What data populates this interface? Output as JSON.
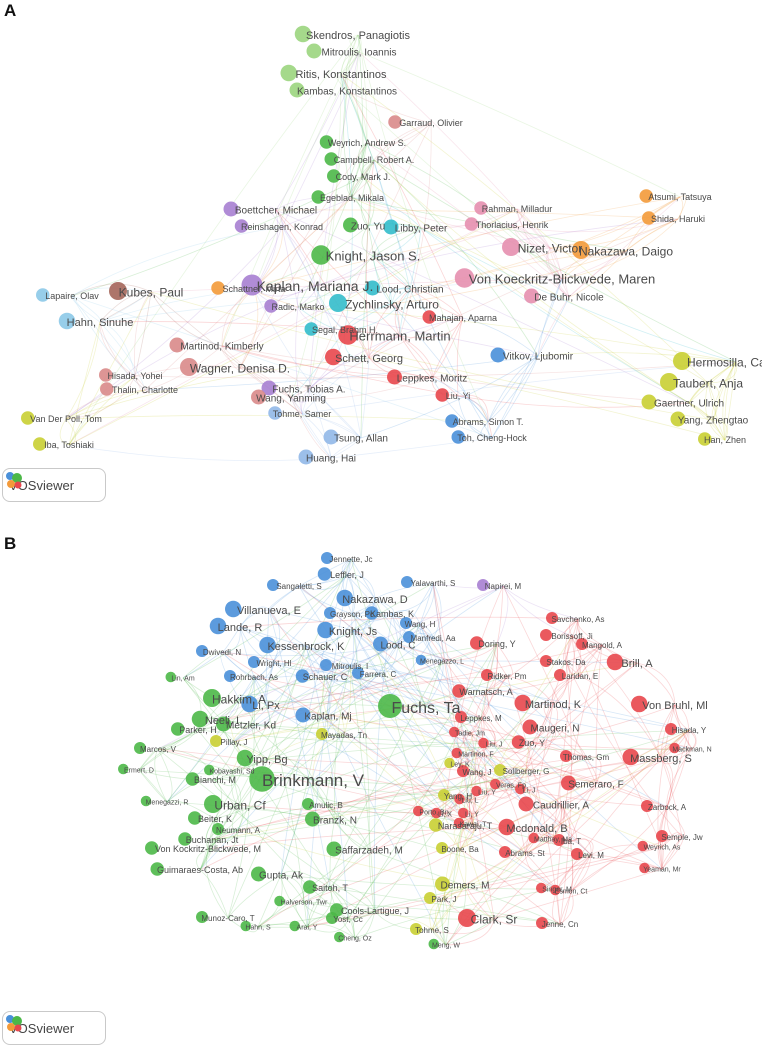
{
  "panels": [
    {
      "letter": "A",
      "logo_text": "VOSviewer",
      "clusters": {
        "red": "#e8474d",
        "green": "#4cb848",
        "blue": "#4a90d9",
        "yellow": "#c9cf33",
        "purple": "#a77fd1",
        "cyan": "#33bccb",
        "orange": "#f39a3a",
        "brown": "#a4665a",
        "pink": "#e58faf",
        "lightgreen": "#9bd57e",
        "lightblue": "#91b8e8",
        "skyblue": "#8cc9e8",
        "rose": "#d98a8a"
      },
      "nodes": [
        {
          "label": "Skendros, Panagiotis",
          "c": "lightgreen",
          "s": 11
        },
        {
          "label": "Mitroulis, Ioannis",
          "c": "lightgreen",
          "s": 10
        },
        {
          "label": "Ritis, Konstantinos",
          "c": "lightgreen",
          "s": 11
        },
        {
          "label": "Kambas, Konstantinos",
          "c": "lightgreen",
          "s": 10
        },
        {
          "label": "Garraud, Olivier",
          "c": "rose",
          "s": 9
        },
        {
          "label": "Weyrich, Andrew S.",
          "c": "green",
          "s": 9
        },
        {
          "label": "Campbell, Robert A.",
          "c": "green",
          "s": 9
        },
        {
          "label": "Cody, Mark J.",
          "c": "green",
          "s": 9
        },
        {
          "label": "Egeblad, Mikala",
          "c": "green",
          "s": 9
        },
        {
          "label": "Boettcher, Michael",
          "c": "purple",
          "s": 10
        },
        {
          "label": "Reinshagen, Konrad",
          "c": "purple",
          "s": 9
        },
        {
          "label": "Zuo, Yu",
          "c": "green",
          "s": 10
        },
        {
          "label": "Libby, Peter",
          "c": "cyan",
          "s": 10
        },
        {
          "label": "Rahman, Milladur",
          "c": "pink",
          "s": 9
        },
        {
          "label": "Thorlacius, Henrik",
          "c": "pink",
          "s": 9
        },
        {
          "label": "Atsumi, Tatsuya",
          "c": "orange",
          "s": 9
        },
        {
          "label": "Shida, Haruki",
          "c": "orange",
          "s": 9
        },
        {
          "label": "Nizet, Victor",
          "c": "pink",
          "s": 12
        },
        {
          "label": "Knight, Jason S.",
          "c": "green",
          "s": 13
        },
        {
          "label": "Nakazawa, Daigo",
          "c": "orange",
          "s": 12
        },
        {
          "label": "Kaplan, Mariana J.",
          "c": "purple",
          "s": 14
        },
        {
          "label": "Von Koeckritz-Blickwede, Maren",
          "c": "pink",
          "s": 13
        },
        {
          "label": "Lood, Christian",
          "c": "cyan",
          "s": 10
        },
        {
          "label": "Kubes, Paul",
          "c": "brown",
          "s": 12
        },
        {
          "label": "Lapaire, Olav",
          "c": "skyblue",
          "s": 9
        },
        {
          "label": "De Buhr, Nicole",
          "c": "pink",
          "s": 10
        },
        {
          "label": "Zychlinsky, Arturo",
          "c": "cyan",
          "s": 12
        },
        {
          "label": "Schattner, Mirta",
          "c": "orange",
          "s": 9
        },
        {
          "label": "Hahn, Sinuhe",
          "c": "skyblue",
          "s": 11
        },
        {
          "label": "Radic, Marko",
          "c": "purple",
          "s": 9
        },
        {
          "label": "Mahajan, Aparna",
          "c": "red",
          "s": 9
        },
        {
          "label": "Segal, Brahm H.",
          "c": "cyan",
          "s": 9
        },
        {
          "label": "Herrmann, Martin",
          "c": "red",
          "s": 13
        },
        {
          "label": "Martinod, Kimberly",
          "c": "rose",
          "s": 10
        },
        {
          "label": "Schett, Georg",
          "c": "red",
          "s": 11
        },
        {
          "label": "Vitkov, Ljubomir",
          "c": "blue",
          "s": 10
        },
        {
          "label": "Hermosilla, Carlos",
          "c": "yellow",
          "s": 12
        },
        {
          "label": "Wagner, Denisa D.",
          "c": "rose",
          "s": 12
        },
        {
          "label": "Fuchs, Tobias A.",
          "c": "purple",
          "s": 10
        },
        {
          "label": "Leppkes, Moritz",
          "c": "red",
          "s": 10
        },
        {
          "label": "Hisada, Yohei",
          "c": "rose",
          "s": 9
        },
        {
          "label": "Taubert, Anja",
          "c": "yellow",
          "s": 12
        },
        {
          "label": "Thalin, Charlotte",
          "c": "rose",
          "s": 9
        },
        {
          "label": "Wang, Yanming",
          "c": "rose",
          "s": 10
        },
        {
          "label": "Liu, Yi",
          "c": "red",
          "s": 9
        },
        {
          "label": "Gaertner, Ulrich",
          "c": "yellow",
          "s": 10
        },
        {
          "label": "Van Der Poll, Tom",
          "c": "yellow",
          "s": 9
        },
        {
          "label": "Tohme, Samer",
          "c": "lightblue",
          "s": 9
        },
        {
          "label": "Abrams, Simon T.",
          "c": "blue",
          "s": 9
        },
        {
          "label": "Yang, Zhengtao",
          "c": "yellow",
          "s": 10
        },
        {
          "label": "Iba, Toshiaki",
          "c": "yellow",
          "s": 9
        },
        {
          "label": "Tsung, Allan",
          "c": "lightblue",
          "s": 10
        },
        {
          "label": "Toh, Cheng-Hock",
          "c": "blue",
          "s": 9
        },
        {
          "label": "Han, Zhen",
          "c": "yellow",
          "s": 9
        },
        {
          "label": "Huang, Hai",
          "c": "lightblue",
          "s": 10
        }
      ]
    },
    {
      "letter": "B",
      "logo_text": "VOSviewer",
      "clusters": {
        "red": "#e8474d",
        "green": "#4cb848",
        "blue": "#4a90d9",
        "yellow": "#c9cf33",
        "purple": "#a77fd1"
      },
      "nodes": [
        {
          "label": "Jennette, Jc",
          "c": "blue",
          "s": 8
        },
        {
          "label": "Leffler, J",
          "c": "blue",
          "s": 9
        },
        {
          "label": "Sangaletti, S",
          "c": "blue",
          "s": 8
        },
        {
          "label": "Yalavarthi, S",
          "c": "blue",
          "s": 8
        },
        {
          "label": "Napirei, M",
          "c": "purple",
          "s": 8
        },
        {
          "label": "Nakazawa, D",
          "c": "blue",
          "s": 11
        },
        {
          "label": "Villanueva, E",
          "c": "blue",
          "s": 11
        },
        {
          "label": "Grayson, Pc",
          "c": "blue",
          "s": 8
        },
        {
          "label": "Kambas, K",
          "c": "blue",
          "s": 9
        },
        {
          "label": "Savchenko, As",
          "c": "red",
          "s": 8
        },
        {
          "label": "Knight, Js",
          "c": "blue",
          "s": 11
        },
        {
          "label": "Wang, H",
          "c": "blue",
          "s": 8
        },
        {
          "label": "Lande, R",
          "c": "blue",
          "s": 11
        },
        {
          "label": "Manfredi, Aa",
          "c": "blue",
          "s": 8
        },
        {
          "label": "Borissoff, Ji",
          "c": "red",
          "s": 8
        },
        {
          "label": "Kessenbrock, K",
          "c": "blue",
          "s": 11
        },
        {
          "label": "Lood, C",
          "c": "blue",
          "s": 10
        },
        {
          "label": "Doring, Y",
          "c": "red",
          "s": 9
        },
        {
          "label": "Dwivedi, N",
          "c": "blue",
          "s": 8
        },
        {
          "label": "Mangold, A",
          "c": "red",
          "s": 8
        },
        {
          "label": "Wright, Hl",
          "c": "blue",
          "s": 8
        },
        {
          "label": "Mitroulis, I",
          "c": "blue",
          "s": 8
        },
        {
          "label": "Menegazzo, L",
          "c": "blue",
          "s": 7
        },
        {
          "label": "Stakos, Da",
          "c": "red",
          "s": 8
        },
        {
          "label": "Brill, A",
          "c": "red",
          "s": 11
        },
        {
          "label": "Lin, Am",
          "c": "green",
          "s": 7
        },
        {
          "label": "Rohrbach, As",
          "c": "blue",
          "s": 8
        },
        {
          "label": "Schauer, C",
          "c": "blue",
          "s": 9
        },
        {
          "label": "Farrera, C",
          "c": "blue",
          "s": 8
        },
        {
          "label": "Ridker, Pm",
          "c": "red",
          "s": 8
        },
        {
          "label": "Laridan, E",
          "c": "red",
          "s": 8
        },
        {
          "label": "Warnatsch, A",
          "c": "red",
          "s": 9
        },
        {
          "label": "Hakkim, A",
          "c": "green",
          "s": 12
        },
        {
          "label": "Li, Px",
          "c": "blue",
          "s": 11
        },
        {
          "label": "Fuchs, Ta",
          "c": "green",
          "s": 16
        },
        {
          "label": "Martinod, K",
          "c": "red",
          "s": 11
        },
        {
          "label": "Von Bruhl, Ml",
          "c": "red",
          "s": 11
        },
        {
          "label": "Kaplan, Mj",
          "c": "blue",
          "s": 10
        },
        {
          "label": "Leppkes, M",
          "c": "red",
          "s": 8
        },
        {
          "label": "Neeli, I",
          "c": "green",
          "s": 11
        },
        {
          "label": "Hisada, Y",
          "c": "red",
          "s": 8
        },
        {
          "label": "Metzler, Kd",
          "c": "green",
          "s": 10
        },
        {
          "label": "Mayadas, Tn",
          "c": "yellow",
          "s": 8
        },
        {
          "label": "Tadie, Jm",
          "c": "red",
          "s": 7
        },
        {
          "label": "Maugeri, N",
          "c": "red",
          "s": 10
        },
        {
          "label": "Parker, H",
          "c": "green",
          "s": 9
        },
        {
          "label": "Pillay, J",
          "c": "yellow",
          "s": 8
        },
        {
          "label": "Liu, J",
          "c": "red",
          "s": 7
        },
        {
          "label": "Zuo, Y",
          "c": "red",
          "s": 9
        },
        {
          "label": "Mackman, N",
          "c": "red",
          "s": 7
        },
        {
          "label": "Marcos, V",
          "c": "green",
          "s": 8
        },
        {
          "label": "Martinon, F",
          "c": "red",
          "s": 7
        },
        {
          "label": "Thomas, Gm",
          "c": "red",
          "s": 8
        },
        {
          "label": "Massberg, S",
          "c": "red",
          "s": 11
        },
        {
          "label": "Yipp, Bg",
          "c": "green",
          "s": 11
        },
        {
          "label": "Ley, K",
          "c": "yellow",
          "s": 7
        },
        {
          "label": "Ermert, D",
          "c": "green",
          "s": 7
        },
        {
          "label": "Kobayashi, Sd",
          "c": "green",
          "s": 7
        },
        {
          "label": "Wang, J",
          "c": "red",
          "s": 8
        },
        {
          "label": "Sollberger, G",
          "c": "yellow",
          "s": 8
        },
        {
          "label": "Bianchi, M",
          "c": "green",
          "s": 9
        },
        {
          "label": "Brinkmann, V",
          "c": "green",
          "s": 17
        },
        {
          "label": "Veras, Fp",
          "c": "red",
          "s": 7
        },
        {
          "label": "Semeraro, F",
          "c": "red",
          "s": 10
        },
        {
          "label": "Liu, Y",
          "c": "red",
          "s": 7
        },
        {
          "label": "Li, J",
          "c": "red",
          "s": 7
        },
        {
          "label": "Yang, H",
          "c": "yellow",
          "s": 8
        },
        {
          "label": "Liu, L",
          "c": "red",
          "s": 7
        },
        {
          "label": "Menegazzi, R",
          "c": "green",
          "s": 7
        },
        {
          "label": "Caudrillier, A",
          "c": "red",
          "s": 10
        },
        {
          "label": "Urban, Cf",
          "c": "green",
          "s": 12
        },
        {
          "label": "Amulic, B",
          "c": "green",
          "s": 8
        },
        {
          "label": "Porto, Bn",
          "c": "red",
          "s": 7
        },
        {
          "label": "Li, X",
          "c": "red",
          "s": 7
        },
        {
          "label": "Li, Y",
          "c": "red",
          "s": 7
        },
        {
          "label": "Zarbock, A",
          "c": "red",
          "s": 8
        },
        {
          "label": "Beiter, K",
          "c": "green",
          "s": 9
        },
        {
          "label": "Kawai, T",
          "c": "red",
          "s": 7
        },
        {
          "label": "Branzk, N",
          "c": "green",
          "s": 10
        },
        {
          "label": "Narasaraju, T",
          "c": "yellow",
          "s": 9
        },
        {
          "label": "Mcdonald, B",
          "c": "red",
          "s": 11
        },
        {
          "label": "Neumann, A",
          "c": "green",
          "s": 8
        },
        {
          "label": "Buchanan, Jt",
          "c": "green",
          "s": 9
        },
        {
          "label": "Matthay, Ma",
          "c": "red",
          "s": 7
        },
        {
          "label": "Semple, Jw",
          "c": "red",
          "s": 8
        },
        {
          "label": "Iba, T",
          "c": "red",
          "s": 8
        },
        {
          "label": "Boone, Ba",
          "c": "yellow",
          "s": 8
        },
        {
          "label": "Von Kockritz-Blickwede, M",
          "c": "green",
          "s": 9
        },
        {
          "label": "Saffarzadeh, M",
          "c": "green",
          "s": 10
        },
        {
          "label": "Abrams, St",
          "c": "red",
          "s": 8
        },
        {
          "label": "Weyrich, As",
          "c": "red",
          "s": 7
        },
        {
          "label": "Levi, M",
          "c": "red",
          "s": 8
        },
        {
          "label": "Guimaraes-Costa, Ab",
          "c": "green",
          "s": 9
        },
        {
          "label": "Gupta, Ak",
          "c": "green",
          "s": 10
        },
        {
          "label": "Yeaman, Mr",
          "c": "red",
          "s": 7
        },
        {
          "label": "Saitoh, T",
          "c": "green",
          "s": 9
        },
        {
          "label": "Demers, M",
          "c": "yellow",
          "s": 10
        },
        {
          "label": "Singer, M",
          "c": "red",
          "s": 7
        },
        {
          "label": "Esmon, Ct",
          "c": "red",
          "s": 7
        },
        {
          "label": "Park, J",
          "c": "yellow",
          "s": 8
        },
        {
          "label": "Halverson, Twr",
          "c": "green",
          "s": 7
        },
        {
          "label": "Cools-Lartigue, J",
          "c": "green",
          "s": 9
        },
        {
          "label": "Munoz-Caro, T",
          "c": "green",
          "s": 8
        },
        {
          "label": "Yost, Cc",
          "c": "green",
          "s": 8
        },
        {
          "label": "Clark, Sr",
          "c": "red",
          "s": 12
        },
        {
          "label": "Jenne, Cn",
          "c": "red",
          "s": 8
        },
        {
          "label": "Tohme, S",
          "c": "yellow",
          "s": 8
        },
        {
          "label": "Hahn, S",
          "c": "green",
          "s": 7
        },
        {
          "label": "Arai, Y",
          "c": "green",
          "s": 7
        },
        {
          "label": "Cheng, Oz",
          "c": "green",
          "s": 7
        },
        {
          "label": "Meng, W",
          "c": "green",
          "s": 7
        }
      ]
    }
  ]
}
